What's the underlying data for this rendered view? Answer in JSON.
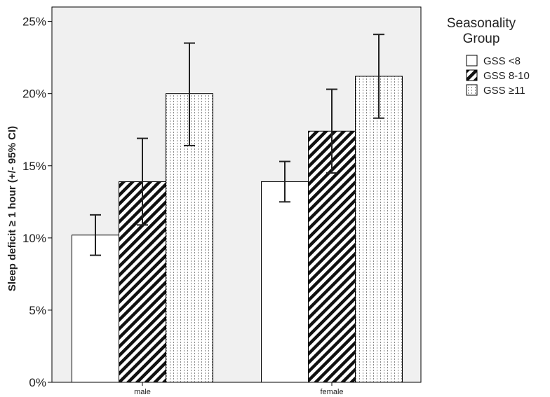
{
  "chart_data": {
    "type": "bar",
    "title": "",
    "xlabel": "",
    "ylabel": "Sleep deficit ≥ 1 hour (+/- 95% CI)",
    "categories": [
      "male",
      "female"
    ],
    "ylim": [
      0,
      26
    ],
    "yticks": [
      "0%",
      "5%",
      "10%",
      "15%",
      "20%",
      "25%"
    ],
    "ytick_values": [
      0,
      5,
      10,
      15,
      20,
      25
    ],
    "grid": false,
    "legend": {
      "title_lines": [
        "Seasonality",
        "Group"
      ],
      "placement": "right"
    },
    "series": [
      {
        "name": "GSS <8",
        "values": [
          10.2,
          13.9
        ],
        "ci_low": [
          8.8,
          12.5
        ],
        "ci_high": [
          11.6,
          15.3
        ],
        "pattern": "white"
      },
      {
        "name": "GSS 8-10",
        "values": [
          13.9,
          17.4
        ],
        "ci_low": [
          10.9,
          14.5
        ],
        "ci_high": [
          16.9,
          20.3
        ],
        "pattern": "diagonal-hatch"
      },
      {
        "name": "GSS ≥11",
        "values": [
          20.0,
          21.2
        ],
        "ci_low": [
          16.4,
          18.3
        ],
        "ci_high": [
          23.5,
          24.1
        ],
        "pattern": "dotted-vertical"
      }
    ],
    "colors": {
      "plot_background": "#f0f0f0",
      "bar_outline": "#000000",
      "hatch": "#111111"
    }
  }
}
